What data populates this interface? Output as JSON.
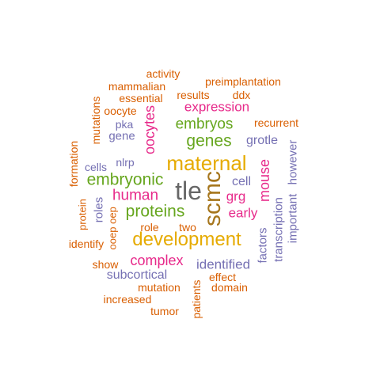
{
  "words": {
    "tle": "tle",
    "scmc": "scmc",
    "maternal": "maternal",
    "development": "development",
    "embryonic": "embryonic",
    "proteins": "proteins",
    "genes": "genes",
    "embryos": "embryos",
    "human": "human",
    "complex": "complex",
    "oocytes": "oocytes",
    "mouse": "mouse",
    "expression": "expression",
    "early": "early",
    "grg": "grg",
    "identified": "identified",
    "cell": "cell",
    "grotle": "grotle",
    "subcortical": "subcortical",
    "gene": "gene",
    "roles": "roles",
    "factors": "factors",
    "transcription": "transcription",
    "important": "important",
    "however": "however",
    "recurrent": "recurrent",
    "mammalian": "mammalian",
    "preimplantation": "preimplantation",
    "activity": "activity",
    "essential": "essential",
    "results": "results",
    "ddx": "ddx",
    "oocyte": "oocyte",
    "mutations": "mutations",
    "pka": "pka",
    "formation": "formation",
    "cells": "cells",
    "nlrp": "nlrp",
    "protein": "protein",
    "oep": "oep",
    "ooep": "ooep",
    "role": "role",
    "two": "two",
    "identify": "identify",
    "show": "show",
    "effect": "effect",
    "domain": "domain",
    "mutation": "mutation",
    "increased": "increased",
    "tumor": "tumor",
    "patients": "patients"
  },
  "palette": {
    "gray": "#666666",
    "orange": "#d95f02",
    "green": "#66a61e",
    "gold": "#e6ab02",
    "pink": "#e7298a",
    "purple": "#7570b3",
    "brown": "#a6761d"
  }
}
